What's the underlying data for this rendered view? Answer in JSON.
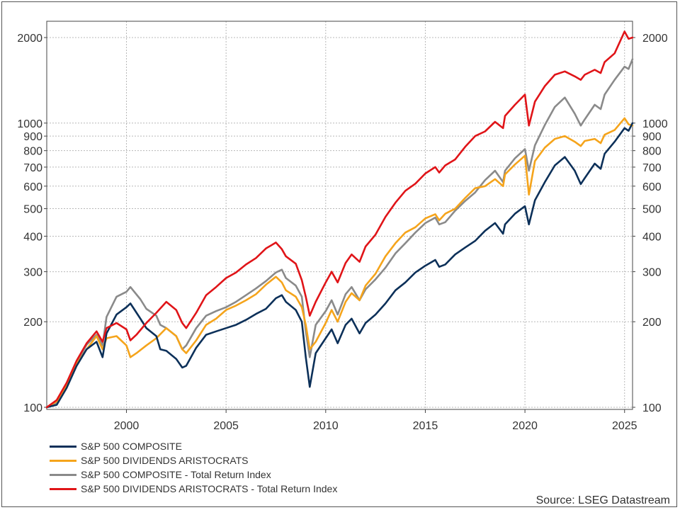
{
  "chart_data": {
    "type": "line",
    "title": "",
    "xlabel": "",
    "ylabel": "",
    "y_scale": "log",
    "ylim": [
      100,
      2200
    ],
    "xlim": [
      1996.0,
      2025.4
    ],
    "x_ticks": [
      "2000",
      "2005",
      "2010",
      "2015",
      "2020",
      "2025"
    ],
    "x_tick_values": [
      2000,
      2005,
      2010,
      2015,
      2020,
      2025
    ],
    "y_ticks": [
      "100",
      "200",
      "300",
      "400",
      "500",
      "600",
      "700",
      "800",
      "900",
      "1000",
      "2000"
    ],
    "y_tick_values": [
      100,
      200,
      300,
      400,
      500,
      600,
      700,
      800,
      900,
      1000,
      2000
    ],
    "grid": true,
    "legend_position": "bottom-left",
    "source": "Source: LSEG Datastream",
    "series": [
      {
        "name": "S&P 500 COMPOSITE",
        "color": "#0c3059",
        "x": [
          1996.0,
          1996.5,
          1997.0,
          1997.5,
          1998.0,
          1998.5,
          1998.8,
          1999.0,
          1999.5,
          2000.0,
          2000.2,
          2000.7,
          2001.0,
          2001.5,
          2001.7,
          2002.0,
          2002.5,
          2002.8,
          2003.0,
          2003.5,
          2004.0,
          2004.5,
          2005.0,
          2005.5,
          2006.0,
          2006.5,
          2007.0,
          2007.5,
          2007.8,
          2008.0,
          2008.5,
          2008.8,
          2009.0,
          2009.2,
          2009.5,
          2010.0,
          2010.3,
          2010.6,
          2011.0,
          2011.3,
          2011.7,
          2012.0,
          2012.5,
          2013.0,
          2013.5,
          2014.0,
          2014.5,
          2015.0,
          2015.5,
          2015.7,
          2016.0,
          2016.5,
          2017.0,
          2017.5,
          2018.0,
          2018.5,
          2018.9,
          2019.0,
          2019.5,
          2020.0,
          2020.2,
          2020.5,
          2021.0,
          2021.5,
          2022.0,
          2022.5,
          2022.8,
          2023.0,
          2023.5,
          2023.8,
          2024.0,
          2024.5,
          2025.0,
          2025.2,
          2025.4
        ],
        "values": [
          100,
          102,
          117,
          140,
          160,
          170,
          150,
          182,
          212,
          225,
          232,
          205,
          190,
          178,
          160,
          158,
          148,
          138,
          140,
          162,
          180,
          185,
          190,
          195,
          203,
          213,
          222,
          242,
          248,
          235,
          220,
          200,
          150,
          118,
          155,
          175,
          188,
          168,
          195,
          205,
          182,
          198,
          212,
          232,
          258,
          275,
          298,
          315,
          330,
          312,
          318,
          345,
          365,
          385,
          418,
          445,
          408,
          440,
          480,
          510,
          440,
          535,
          620,
          710,
          760,
          680,
          610,
          640,
          720,
          690,
          780,
          860,
          960,
          940,
          1000
        ]
      },
      {
        "name": "S&P 500 DIVIDENDS ARISTOCRATS",
        "color": "#f5a41b",
        "x": [
          1996.0,
          1996.5,
          1997.0,
          1997.5,
          1998.0,
          1998.5,
          1998.8,
          1999.0,
          1999.5,
          2000.0,
          2000.2,
          2000.5,
          2001.0,
          2001.5,
          2002.0,
          2002.5,
          2002.8,
          2003.0,
          2003.5,
          2004.0,
          2004.5,
          2005.0,
          2005.5,
          2006.0,
          2006.5,
          2007.0,
          2007.5,
          2007.8,
          2008.0,
          2008.5,
          2008.8,
          2009.0,
          2009.2,
          2009.5,
          2010.0,
          2010.3,
          2010.6,
          2011.0,
          2011.3,
          2011.7,
          2012.0,
          2012.5,
          2013.0,
          2013.5,
          2014.0,
          2014.5,
          2015.0,
          2015.5,
          2015.7,
          2016.0,
          2016.5,
          2017.0,
          2017.5,
          2018.0,
          2018.5,
          2018.9,
          2019.0,
          2019.5,
          2020.0,
          2020.2,
          2020.5,
          2021.0,
          2021.5,
          2022.0,
          2022.5,
          2022.8,
          2023.0,
          2023.5,
          2023.8,
          2024.0,
          2024.5,
          2025.0,
          2025.2,
          2025.4
        ],
        "values": [
          100,
          105,
          120,
          142,
          160,
          178,
          160,
          175,
          178,
          165,
          150,
          155,
          165,
          175,
          190,
          178,
          160,
          155,
          172,
          195,
          205,
          220,
          228,
          238,
          250,
          270,
          288,
          275,
          258,
          245,
          225,
          195,
          160,
          170,
          198,
          220,
          200,
          235,
          252,
          238,
          268,
          295,
          340,
          378,
          412,
          430,
          462,
          478,
          455,
          480,
          500,
          545,
          590,
          600,
          635,
          600,
          660,
          715,
          768,
          560,
          735,
          820,
          880,
          900,
          860,
          830,
          865,
          880,
          850,
          910,
          945,
          1040,
          990,
          980
        ]
      },
      {
        "name": "S&P 500 COMPOSITE - Total Return Index",
        "color": "#8a8a8a",
        "x": [
          1996.0,
          1996.5,
          1997.0,
          1997.5,
          1998.0,
          1998.5,
          1998.8,
          1999.0,
          1999.5,
          2000.0,
          2000.2,
          2000.7,
          2001.0,
          2001.5,
          2001.7,
          2002.0,
          2002.5,
          2002.8,
          2003.0,
          2003.5,
          2004.0,
          2004.5,
          2005.0,
          2005.5,
          2006.0,
          2006.5,
          2007.0,
          2007.5,
          2007.8,
          2008.0,
          2008.5,
          2008.8,
          2009.0,
          2009.2,
          2009.5,
          2010.0,
          2010.3,
          2010.6,
          2011.0,
          2011.3,
          2011.7,
          2012.0,
          2012.5,
          2013.0,
          2013.5,
          2014.0,
          2014.5,
          2015.0,
          2015.5,
          2015.7,
          2016.0,
          2016.5,
          2017.0,
          2017.5,
          2018.0,
          2018.5,
          2018.9,
          2019.0,
          2019.5,
          2020.0,
          2020.2,
          2020.5,
          2021.0,
          2021.5,
          2022.0,
          2022.5,
          2022.8,
          2023.0,
          2023.5,
          2023.8,
          2024.0,
          2024.5,
          2025.0,
          2025.2,
          2025.4
        ],
        "values": [
          100,
          104,
          120,
          144,
          166,
          180,
          165,
          208,
          245,
          255,
          265,
          240,
          222,
          210,
          195,
          190,
          178,
          160,
          165,
          190,
          210,
          218,
          225,
          235,
          248,
          262,
          278,
          298,
          305,
          285,
          268,
          245,
          185,
          150,
          195,
          218,
          238,
          212,
          250,
          265,
          238,
          260,
          282,
          310,
          348,
          378,
          412,
          445,
          465,
          440,
          448,
          492,
          532,
          570,
          630,
          680,
          620,
          680,
          752,
          810,
          680,
          835,
          985,
          1140,
          1230,
          1080,
          980,
          1030,
          1160,
          1120,
          1260,
          1420,
          1580,
          1550,
          1680
        ]
      },
      {
        "name": "S&P 500 DIVIDENDS ARISTOCRATS - Total Return Index",
        "color": "#e01418",
        "x": [
          1996.0,
          1996.5,
          1997.0,
          1997.5,
          1998.0,
          1998.5,
          1998.8,
          1999.0,
          1999.5,
          2000.0,
          2000.2,
          2000.5,
          2001.0,
          2001.5,
          2002.0,
          2002.5,
          2002.8,
          2003.0,
          2003.5,
          2004.0,
          2004.5,
          2005.0,
          2005.5,
          2006.0,
          2006.5,
          2007.0,
          2007.5,
          2007.8,
          2008.0,
          2008.5,
          2008.8,
          2009.0,
          2009.2,
          2009.5,
          2010.0,
          2010.3,
          2010.6,
          2011.0,
          2011.3,
          2011.7,
          2012.0,
          2012.5,
          2013.0,
          2013.5,
          2014.0,
          2014.5,
          2015.0,
          2015.5,
          2015.7,
          2016.0,
          2016.5,
          2017.0,
          2017.5,
          2018.0,
          2018.5,
          2018.9,
          2019.0,
          2019.5,
          2020.0,
          2020.2,
          2020.5,
          2021.0,
          2021.5,
          2022.0,
          2022.5,
          2022.8,
          2023.0,
          2023.5,
          2023.8,
          2024.0,
          2024.5,
          2025.0,
          2025.2,
          2025.4
        ],
        "values": [
          100,
          106,
          122,
          146,
          168,
          185,
          170,
          190,
          198,
          188,
          172,
          180,
          198,
          215,
          235,
          220,
          198,
          190,
          215,
          248,
          265,
          285,
          298,
          318,
          335,
          362,
          380,
          360,
          340,
          320,
          280,
          245,
          210,
          235,
          275,
          300,
          275,
          322,
          345,
          325,
          368,
          405,
          468,
          525,
          578,
          612,
          665,
          700,
          670,
          710,
          745,
          825,
          900,
          935,
          1010,
          960,
          1060,
          1160,
          1260,
          980,
          1190,
          1350,
          1480,
          1520,
          1460,
          1420,
          1480,
          1540,
          1500,
          1640,
          1760,
          2100,
          1980,
          2000
        ]
      }
    ]
  }
}
